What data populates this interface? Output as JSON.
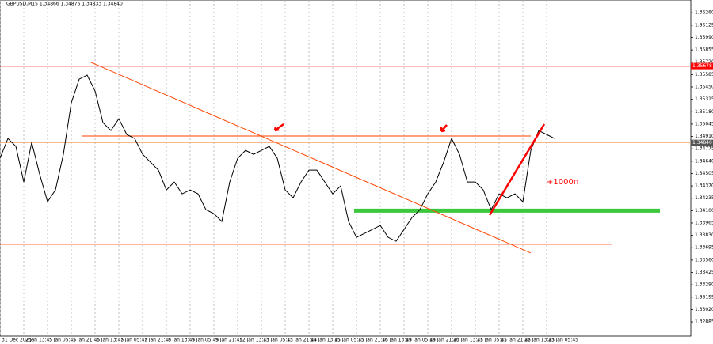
{
  "chart_data": {
    "type": "line",
    "title": "GBPUSD,M15  1.34866 1.34876 1.34833 1.34840",
    "annotation": "+1000п",
    "ylim": [
      1.3273,
      1.364
    ],
    "xlim": [
      0,
      87.2
    ],
    "yticks": [
      {
        "value": 1.3626,
        "label": "1.36260"
      },
      {
        "value": 1.36125,
        "label": "1.36125"
      },
      {
        "value": 1.3599,
        "label": "1.35990"
      },
      {
        "value": 1.35855,
        "label": "1.35855"
      },
      {
        "value": 1.3572,
        "label": "1.35720"
      },
      {
        "value": 1.35585,
        "label": "1.35585"
      },
      {
        "value": 1.3545,
        "label": "1.35450"
      },
      {
        "value": 1.35315,
        "label": "1.35315"
      },
      {
        "value": 1.3518,
        "label": "1.35180"
      },
      {
        "value": 1.35045,
        "label": "1.35045"
      },
      {
        "value": 1.3491,
        "label": "1.34910"
      },
      {
        "value": 1.34775,
        "label": "1.34775"
      },
      {
        "value": 1.3464,
        "label": "1.34640"
      },
      {
        "value": 1.34505,
        "label": "1.34505"
      },
      {
        "value": 1.3437,
        "label": "1.34370"
      },
      {
        "value": 1.34235,
        "label": "1.34235"
      },
      {
        "value": 1.341,
        "label": "1.34100"
      },
      {
        "value": 1.33965,
        "label": "1.33965"
      },
      {
        "value": 1.3383,
        "label": "1.33830"
      },
      {
        "value": 1.33695,
        "label": "1.33695"
      },
      {
        "value": 1.3356,
        "label": "1.33560"
      },
      {
        "value": 1.33425,
        "label": "1.33425"
      },
      {
        "value": 1.3329,
        "label": "1.33290"
      },
      {
        "value": 1.33155,
        "label": "1.33155"
      },
      {
        "value": 1.3302,
        "label": "1.33020"
      },
      {
        "value": 1.32885,
        "label": "1.32885"
      }
    ],
    "xticks": [
      {
        "value": 0,
        "label": "31 Dec 2025"
      },
      {
        "value": 3,
        "label": "2 Jan 13:45"
      },
      {
        "value": 6,
        "label": "5 Jan 05:45"
      },
      {
        "value": 9,
        "label": "5 Jan 21:45"
      },
      {
        "value": 12,
        "label": "6 Jan 13:45"
      },
      {
        "value": 15,
        "label": "7 Jan 05:45"
      },
      {
        "value": 18,
        "label": "7 Jan 21:45"
      },
      {
        "value": 21,
        "label": "8 Jan 13:45"
      },
      {
        "value": 24,
        "label": "9 Jan 05:45"
      },
      {
        "value": 27,
        "label": "9 Jan 21:45"
      },
      {
        "value": 30,
        "label": "12 Jan 13:45"
      },
      {
        "value": 33,
        "label": "13 Jan 05:45"
      },
      {
        "value": 36,
        "label": "13 Jan 21:45"
      },
      {
        "value": 39,
        "label": "14 Jan 13:45"
      },
      {
        "value": 42,
        "label": "15 Jan 05:45"
      },
      {
        "value": 45,
        "label": "15 Jan 21:45"
      },
      {
        "value": 48,
        "label": "16 Jan 13:45"
      },
      {
        "value": 51,
        "label": "19 Jan 05:45"
      },
      {
        "value": 54,
        "label": "19 Jan 21:45"
      },
      {
        "value": 57,
        "label": "20 Jan 13:45"
      },
      {
        "value": 60,
        "label": "21 Jan 05:45"
      },
      {
        "value": 63,
        "label": "21 Jan 21:45"
      },
      {
        "value": 66,
        "label": "22 Jan 13:45"
      },
      {
        "value": 69,
        "label": "23 Jan 05:45"
      }
    ],
    "series": [
      {
        "name": "GBPUSD,M15",
        "color": "#000000",
        "values": [
          1.34672,
          1.34888,
          1.34802,
          1.34413,
          1.34845,
          1.34499,
          1.34197,
          1.34326,
          1.34715,
          1.35277,
          1.35536,
          1.35579,
          1.35406,
          1.35061,
          1.34974,
          1.35104,
          1.34931,
          1.34888,
          1.34715,
          1.34629,
          1.34542,
          1.34326,
          1.34413,
          1.34283,
          1.34326,
          1.34283,
          1.3411,
          1.34067,
          1.33981,
          1.34413,
          1.34672,
          1.34758,
          1.34715,
          1.34758,
          1.34802,
          1.34672,
          1.34326,
          1.3424,
          1.34413,
          1.34542,
          1.34542,
          1.34413,
          1.34283,
          1.3437,
          1.33981,
          1.33808,
          1.33851,
          1.33894,
          1.33938,
          1.33808,
          1.33765,
          1.33894,
          1.34024,
          1.3411,
          1.34283,
          1.34413,
          1.34629,
          1.34888,
          1.34715,
          1.34413,
          1.34413,
          1.34326,
          1.3411,
          1.34283,
          1.3424,
          1.34283,
          1.34197,
          1.34758,
          1.34974,
          1.34931,
          1.34888
        ]
      }
    ],
    "levels": [
      {
        "value": 1.35678,
        "label": "1.35678",
        "color": "#ff0000",
        "width": 1.2
      },
      {
        "value": 1.34915,
        "from": 10.3,
        "to": 67,
        "color": "#ff7f50",
        "width": 1.5
      },
      {
        "value": 1.3484,
        "label": "1.34840",
        "color": "#f4a460",
        "width": 0.8
      },
      {
        "value": 1.341,
        "from": 44.7,
        "to": 83.3,
        "color": "#3cc83c",
        "width": 5
      },
      {
        "value": 1.33732,
        "from": 0,
        "to": 77.3,
        "color": "#ff6a3d",
        "width": 1
      }
    ],
    "trendlines": [
      {
        "x": [
          11.3,
          67
        ],
        "values": [
          1.35726,
          1.33637
        ],
        "color": "#ff4500",
        "width": 1
      },
      {
        "x": [
          61.8,
          68.7
        ],
        "values": [
          1.34051,
          1.35044
        ],
        "color": "#ff0000",
        "width": 2.5
      }
    ]
  }
}
